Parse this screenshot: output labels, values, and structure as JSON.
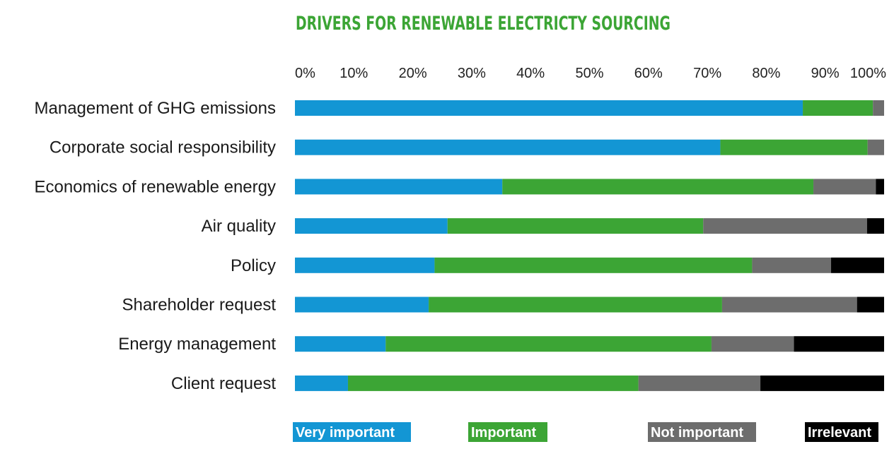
{
  "chart_data": {
    "type": "bar",
    "orientation": "horizontal",
    "stacked": true,
    "title": "DRIVERS FOR RENEWABLE ELECTRICTY SOURCING",
    "xlim": [
      0,
      100
    ],
    "x_ticks": [
      "0%",
      "10%",
      "20%",
      "30%",
      "40%",
      "50%",
      "60%",
      "70%",
      "80%",
      "90%",
      "100%"
    ],
    "categories": [
      "Management of GHG emissions",
      "Corporate social responsibility",
      "Economics of renewable energy",
      "Air quality",
      "Policy",
      "Shareholder request",
      "Energy management",
      "Client request"
    ],
    "series": [
      {
        "name": "Very important",
        "color": "#1396d4",
        "values": [
          86.2,
          72.2,
          35.2,
          25.9,
          23.7,
          22.7,
          15.4,
          9.0
        ]
      },
      {
        "name": "Important",
        "color": "#3ca535",
        "values": [
          11.9,
          25.0,
          52.8,
          43.4,
          53.9,
          49.8,
          55.3,
          49.3
        ]
      },
      {
        "name": "Not important",
        "color": "#6d6d6d",
        "values": [
          1.9,
          2.8,
          10.6,
          27.8,
          13.4,
          22.9,
          14.0,
          20.7
        ]
      },
      {
        "name": "Irrelevant",
        "color": "#000000",
        "values": [
          0.0,
          0.0,
          1.4,
          2.9,
          9.0,
          4.6,
          15.3,
          21.0
        ]
      }
    ],
    "legend_position": "bottom",
    "grid": false,
    "title_color": "#3ca535"
  }
}
